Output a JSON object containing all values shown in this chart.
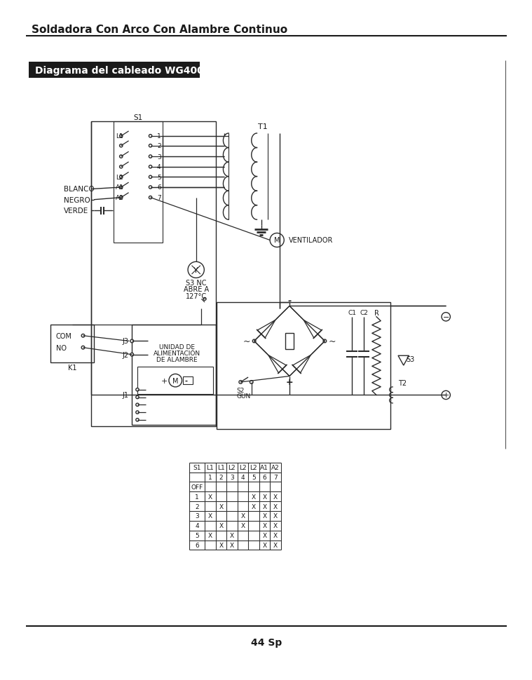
{
  "title": "Soldadora Con Arco Con Alambre Continuo",
  "subtitle": "Diagrama del cableado WG4000",
  "page_number": "44 Sp",
  "bg_color": "#ffffff",
  "text_color": "#1a1a1a",
  "subtitle_bg": "#1a1a1a",
  "subtitle_text": "#ffffff",
  "diagram_color": "#2a2a2a",
  "table": {
    "headers1": [
      "S1",
      "L1",
      "L1",
      "L2",
      "L2",
      "L2",
      "A1",
      "A2"
    ],
    "headers2": [
      "",
      "1",
      "2",
      "3",
      "4",
      "5",
      "6",
      "7"
    ],
    "rows": [
      [
        "OFF",
        "",
        "",
        "",
        "",
        "",
        "",
        ""
      ],
      [
        "1",
        "X",
        "",
        "",
        "",
        "X",
        "X",
        "X"
      ],
      [
        "2",
        "",
        "X",
        "",
        "",
        "X",
        "X",
        "X"
      ],
      [
        "3",
        "X",
        "",
        "",
        "X",
        "",
        "X",
        "X"
      ],
      [
        "4",
        "",
        "X",
        "",
        "X",
        "",
        "X",
        "X"
      ],
      [
        "5",
        "X",
        "",
        "X",
        "",
        "",
        "X",
        "X"
      ],
      [
        "6",
        "",
        "X",
        "X",
        "",
        "",
        "X",
        "X"
      ]
    ]
  }
}
